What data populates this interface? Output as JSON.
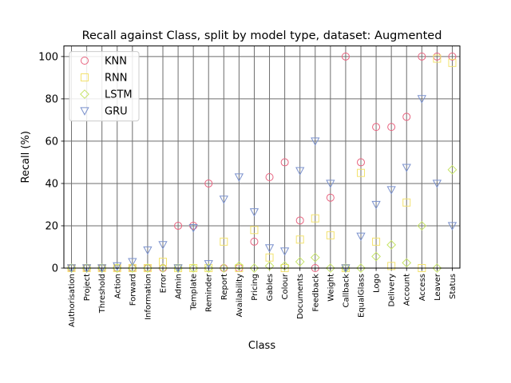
{
  "chart_data": {
    "type": "scatter",
    "title": "Recall against Class, split by model type, dataset: Augmented",
    "xlabel": "Class",
    "ylabel": "Recall (%)",
    "ylim": [
      0,
      105
    ],
    "yticks": [
      0,
      20,
      40,
      60,
      80,
      100
    ],
    "grid": true,
    "legend_position": "top-left",
    "categories": [
      "Authorisation",
      "Project",
      "Threshold",
      "Action",
      "Forward",
      "Information",
      "Error",
      "Admin",
      "Template",
      "Reminder",
      "Report",
      "Availability",
      "Pricing",
      "Gables",
      "Colour",
      "Documents",
      "Feedback",
      "Weight",
      "Callback",
      "EqualGlass",
      "Logo",
      "Delivery",
      "Account",
      "Access",
      "Leaver",
      "Status"
    ],
    "series": [
      {
        "name": "KNN",
        "marker": "circle",
        "color": "#e8637f",
        "values": [
          0,
          0,
          0,
          0,
          0,
          0,
          0,
          20,
          20,
          40,
          0,
          0,
          12.5,
          43,
          50,
          22.5,
          0,
          33.3,
          100,
          50,
          66.7,
          66.7,
          71.5,
          100,
          100,
          100
        ]
      },
      {
        "name": "RNN",
        "marker": "square",
        "color": "#f3e26e",
        "values": [
          0,
          0,
          0,
          0,
          0,
          0,
          3,
          0,
          0,
          0,
          12.5,
          0,
          18,
          5,
          0,
          13.5,
          23.5,
          15.5,
          0,
          45,
          12.5,
          1,
          31,
          0,
          99,
          97
        ]
      },
      {
        "name": "LSTM",
        "marker": "diamond",
        "color": "#c6e467",
        "values": [
          0,
          0,
          0,
          0,
          0,
          0,
          0,
          0,
          0,
          0,
          0,
          1,
          0,
          1,
          1,
          3,
          5,
          0,
          0,
          0,
          5.5,
          11,
          2.5,
          20,
          0,
          46.5
        ]
      },
      {
        "name": "GRU",
        "marker": "triangle-down",
        "color": "#7a91cd",
        "values": [
          0,
          0,
          0,
          1,
          3,
          8.5,
          11,
          0,
          19,
          2,
          32.5,
          43,
          26.5,
          9.5,
          8,
          46,
          60,
          40,
          0,
          15,
          30,
          37,
          47.5,
          80,
          40,
          20
        ]
      }
    ]
  }
}
